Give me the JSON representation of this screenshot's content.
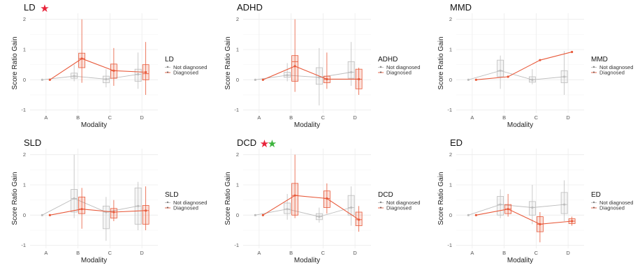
{
  "colors": {
    "not_diagnosed": "#bdbdbd",
    "diagnosed": "#e8593a",
    "star_red": "#e8233a",
    "star_green": "#3cb43c",
    "grid": "#ececec"
  },
  "chart_data": [
    {
      "type": "box",
      "title": "LD",
      "stars": [
        "red"
      ],
      "xlabel": "Modality",
      "ylabel": "Score Ratio Gain",
      "categories": [
        "A",
        "B",
        "C",
        "D"
      ],
      "ylim": [
        -1.1,
        2.2
      ],
      "yticks": [
        -1,
        0,
        1,
        2
      ],
      "legend": {
        "title": "LD",
        "entries": [
          "Not diagnosed",
          "Diagnosed"
        ]
      },
      "series": [
        {
          "name": "Not diagnosed",
          "mean": [
            0,
            0.12,
            0.02,
            0.18
          ],
          "boxes": [
            [
              0,
              0,
              0,
              0,
              0
            ],
            [
              -0.05,
              0.05,
              0.12,
              0.22,
              0.5
            ],
            [
              -0.25,
              -0.1,
              0.02,
              0.12,
              0.35
            ],
            [
              -0.3,
              -0.05,
              0.18,
              0.35,
              0.9
            ]
          ]
        },
        {
          "name": "Diagnosed",
          "mean": [
            0,
            0.7,
            0.3,
            0.25
          ],
          "boxes": [
            [
              0,
              0,
              0,
              0,
              0
            ],
            [
              -0.1,
              0.4,
              0.7,
              0.88,
              2.0
            ],
            [
              -0.2,
              0.05,
              0.3,
              0.52,
              1.05
            ],
            [
              -0.5,
              0.0,
              0.2,
              0.5,
              1.25
            ]
          ]
        }
      ]
    },
    {
      "type": "box",
      "title": "ADHD",
      "stars": [],
      "xlabel": "Modality",
      "ylabel": "Score Ratio Gain",
      "categories": [
        "A",
        "B",
        "C",
        "D"
      ],
      "ylim": [
        -1.1,
        2.2
      ],
      "yticks": [
        -1,
        0,
        1,
        2
      ],
      "legend": {
        "title": "ADHD",
        "entries": [
          "Not diagnosed",
          "Diagnosed"
        ]
      },
      "series": [
        {
          "name": "Not diagnosed",
          "mean": [
            0,
            0.15,
            0.08,
            0.25
          ],
          "boxes": [
            [
              0,
              0,
              0,
              0,
              0
            ],
            [
              -0.05,
              0.08,
              0.15,
              0.25,
              0.55
            ],
            [
              -0.85,
              -0.15,
              0.08,
              0.4,
              1.05
            ],
            [
              -0.2,
              0.05,
              0.25,
              0.6,
              1.25
            ]
          ]
        },
        {
          "name": "Diagnosed",
          "mean": [
            0,
            0.45,
            0.02,
            0.02
          ],
          "boxes": [
            [
              0,
              0,
              0,
              0,
              0
            ],
            [
              -0.4,
              -0.05,
              0.6,
              0.8,
              2.0
            ],
            [
              -0.3,
              -0.1,
              0.02,
              0.12,
              0.9
            ],
            [
              -0.5,
              -0.3,
              0.02,
              0.35,
              0.4
            ]
          ]
        }
      ]
    },
    {
      "type": "box",
      "title": "MMD",
      "stars": [],
      "xlabel": "Modality",
      "ylabel": "Score Ratio Gain",
      "categories": [
        "A",
        "B",
        "C",
        "D"
      ],
      "ylim": [
        -1.1,
        2.2
      ],
      "yticks": [
        -1,
        0,
        1,
        2
      ],
      "legend": {
        "title": "MMD",
        "entries": [
          "Not diagnosed",
          "Diagnosed"
        ]
      },
      "series": [
        {
          "name": "Not diagnosed",
          "mean": [
            0,
            0.3,
            0.0,
            0.1
          ],
          "boxes": [
            [
              0,
              0,
              0,
              0,
              0
            ],
            [
              -0.3,
              0.1,
              0.3,
              0.65,
              0.8
            ],
            [
              -0.15,
              -0.08,
              0.0,
              0.1,
              0.35
            ],
            [
              -0.5,
              -0.1,
              0.1,
              0.3,
              0.95
            ]
          ]
        },
        {
          "name": "Diagnosed",
          "mean": [
            0,
            0.1,
            0.65,
            0.92
          ],
          "boxes": [
            [
              0,
              0,
              0,
              0,
              0
            ],
            [
              0.1,
              0.1,
              0.1,
              0.1,
              0.1
            ],
            [
              0.65,
              0.65,
              0.65,
              0.65,
              0.65
            ],
            [
              0.92,
              0.92,
              0.92,
              0.92,
              0.92
            ]
          ]
        }
      ]
    },
    {
      "type": "box",
      "title": "SLD",
      "stars": [],
      "xlabel": "Modality",
      "ylabel": "Score Ratio Gain",
      "categories": [
        "A",
        "B",
        "C",
        "D"
      ],
      "ylim": [
        -1.1,
        2.2
      ],
      "yticks": [
        -1,
        0,
        1,
        2
      ],
      "legend": {
        "title": "SLD",
        "entries": [
          "Not diagnosed",
          "Diagnosed"
        ]
      },
      "series": [
        {
          "name": "Not diagnosed",
          "mean": [
            0,
            0.55,
            0.1,
            0.3
          ],
          "boxes": [
            [
              0,
              0,
              0,
              0,
              0
            ],
            [
              -0.1,
              0.1,
              0.55,
              0.85,
              2.0
            ],
            [
              -0.85,
              -0.45,
              0.1,
              0.3,
              0.6
            ],
            [
              -0.5,
              -0.3,
              0.3,
              0.9,
              1.1
            ]
          ]
        },
        {
          "name": "Diagnosed",
          "mean": [
            0,
            0.2,
            0.1,
            0.15
          ],
          "boxes": [
            [
              0,
              0,
              0,
              0,
              0
            ],
            [
              -0.45,
              0.05,
              0.2,
              0.6,
              0.9
            ],
            [
              -0.2,
              -0.1,
              0.1,
              0.22,
              0.5
            ],
            [
              -0.5,
              -0.3,
              0.15,
              0.32,
              0.95
            ]
          ]
        }
      ]
    },
    {
      "type": "box",
      "title": "DCD",
      "stars": [
        "red",
        "green"
      ],
      "xlabel": "Modality",
      "ylabel": "Score Ratio Gain",
      "categories": [
        "A",
        "B",
        "C",
        "D"
      ],
      "ylim": [
        -1.1,
        2.2
      ],
      "yticks": [
        -1,
        0,
        1,
        2
      ],
      "legend": {
        "title": "DCD",
        "entries": [
          "Not diagnosed",
          "Diagnosed"
        ]
      },
      "series": [
        {
          "name": "Not diagnosed",
          "mean": [
            0,
            0.2,
            -0.05,
            0.25
          ],
          "boxes": [
            [
              0,
              0,
              0,
              0,
              0
            ],
            [
              -0.15,
              0.05,
              0.2,
              0.4,
              0.7
            ],
            [
              -0.25,
              -0.15,
              -0.05,
              0.05,
              0.25
            ],
            [
              -0.35,
              0.0,
              0.25,
              0.65,
              0.95
            ]
          ]
        },
        {
          "name": "Diagnosed",
          "mean": [
            0,
            0.65,
            0.55,
            -0.15
          ],
          "boxes": [
            [
              0,
              0,
              0,
              0,
              0
            ],
            [
              -0.1,
              0.0,
              0.65,
              1.05,
              2.0
            ],
            [
              0.05,
              0.25,
              0.55,
              0.8,
              1.05
            ],
            [
              -0.55,
              -0.35,
              -0.15,
              0.1,
              0.3
            ]
          ]
        }
      ]
    },
    {
      "type": "box",
      "title": "ED",
      "stars": [],
      "xlabel": "Modality",
      "ylabel": "Score Ratio Gain",
      "categories": [
        "A",
        "B",
        "C",
        "D"
      ],
      "ylim": [
        -1.1,
        2.2
      ],
      "yticks": [
        -1,
        0,
        1,
        2
      ],
      "legend": {
        "title": "ED",
        "entries": [
          "Not diagnosed",
          "Diagnosed"
        ]
      },
      "series": [
        {
          "name": "Not diagnosed",
          "mean": [
            0,
            0.35,
            0.25,
            0.35
          ],
          "boxes": [
            [
              0,
              0,
              0,
              0,
              0
            ],
            [
              -0.1,
              0.0,
              0.35,
              0.62,
              0.85
            ],
            [
              -0.3,
              0.0,
              0.25,
              0.45,
              1.0
            ],
            [
              -0.2,
              0.05,
              0.35,
              0.75,
              1.15
            ]
          ]
        },
        {
          "name": "Diagnosed",
          "mean": [
            0,
            0.2,
            -0.3,
            -0.2
          ],
          "boxes": [
            [
              0,
              0,
              0,
              0,
              0
            ],
            [
              -0.05,
              0.05,
              0.2,
              0.35,
              0.7
            ],
            [
              -0.9,
              -0.55,
              -0.3,
              -0.05,
              0.1
            ],
            [
              -0.35,
              -0.28,
              -0.2,
              -0.12,
              -0.05
            ]
          ]
        }
      ]
    }
  ]
}
